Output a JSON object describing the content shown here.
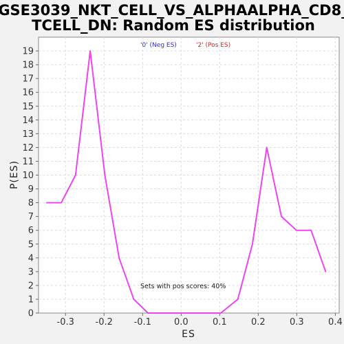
{
  "chart_data": {
    "type": "line",
    "title_line1": "GSE3039_NKT_CELL_VS_ALPHAALPHA_CD8_",
    "title_line2": "TCELL_DN: Random ES distribution",
    "xlabel": "ES",
    "ylabel": "P(ES)",
    "xlim": [
      -0.37,
      0.41
    ],
    "ylim": [
      0,
      20
    ],
    "xticks": [
      -0.3,
      -0.2,
      -0.1,
      0.0,
      0.1,
      0.2,
      0.3,
      0.4
    ],
    "xtick_labels": [
      "-0.3",
      "-0.2",
      "-0.1",
      "0.0",
      "0.1",
      "0.2",
      "0.3",
      "0.4"
    ],
    "yticks": [
      0,
      1,
      2,
      3,
      4,
      5,
      6,
      7,
      8,
      9,
      10,
      11,
      12,
      13,
      14,
      15,
      16,
      17,
      18,
      19
    ],
    "grid": true,
    "legend": [
      {
        "label": "'0' (Neg ES)",
        "color": "#2b2bd6"
      },
      {
        "label": "'2' (Pos ES)",
        "color": "#e02020"
      }
    ],
    "legend_placement": "top-center",
    "annotation": "Sets with pos scores: 40%",
    "series": [
      {
        "color": "#ee44ee",
        "x": [
          -0.349,
          -0.311,
          -0.274,
          -0.236,
          -0.198,
          -0.161,
          -0.123,
          -0.086,
          -0.048,
          -0.01,
          0.028,
          0.065,
          0.103,
          0.147,
          0.185,
          0.222,
          0.26,
          0.299,
          0.337,
          0.375
        ],
        "y": [
          8,
          8,
          10,
          19,
          10,
          4,
          1,
          0,
          0,
          0,
          0,
          0,
          0,
          1,
          5,
          12,
          7,
          6,
          6,
          3
        ]
      }
    ]
  }
}
